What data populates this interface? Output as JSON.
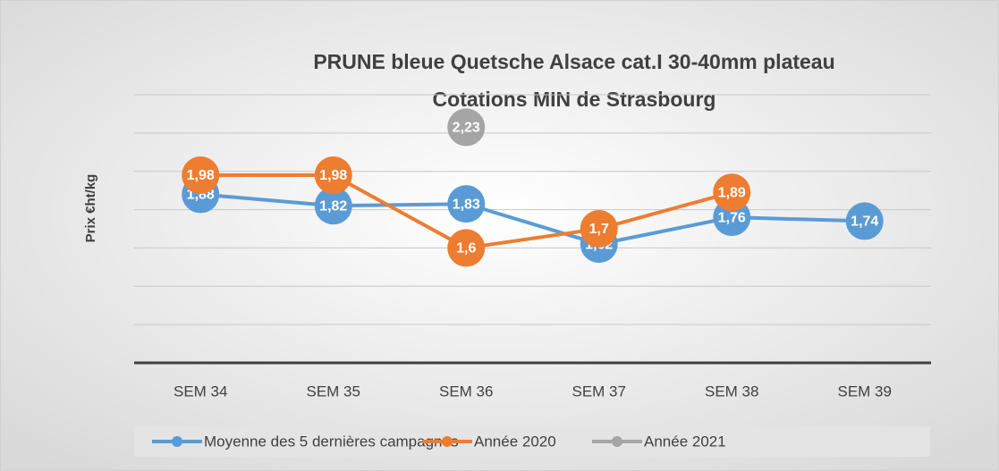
{
  "chart_data": {
    "type": "line",
    "title": "PRUNE bleue Quetsche Alsace cat.I 30-40mm plateau",
    "subtitle": "Cotations MIN de Strasbourg",
    "y_label": "Prix €ht/kg",
    "categories": [
      "SEM 34",
      "SEM 35",
      "SEM 36",
      "SEM 37",
      "SEM 38",
      "SEM 39"
    ],
    "series": [
      {
        "name": "Moyenne des 5 dernières campagnes",
        "color": "#5b9bd5",
        "values": [
          1.88,
          1.82,
          1.83,
          1.62,
          1.76,
          1.74
        ],
        "value_labels": [
          "1,88",
          "1,82",
          "1,83",
          "1,62",
          "1,76",
          "1,74"
        ]
      },
      {
        "name": "Année 2020",
        "color": "#ed7d31",
        "values": [
          1.98,
          1.98,
          1.6,
          1.7,
          1.89,
          null
        ],
        "value_labels": [
          "1,98",
          "1,98",
          "1,6",
          "1,7",
          "1,89",
          null
        ]
      },
      {
        "name": "Année 2021",
        "color": "#a5a5a5",
        "values": [
          null,
          null,
          2.23,
          null,
          null,
          null
        ],
        "value_labels": [
          null,
          null,
          "2,23",
          null,
          null,
          null
        ]
      }
    ],
    "ylim": [
      1.0,
      2.4
    ],
    "yticks": [
      1.2,
      1.4,
      1.6,
      1.8,
      2.0,
      2.2,
      2.4
    ],
    "grid": true,
    "legend": "bottom"
  }
}
